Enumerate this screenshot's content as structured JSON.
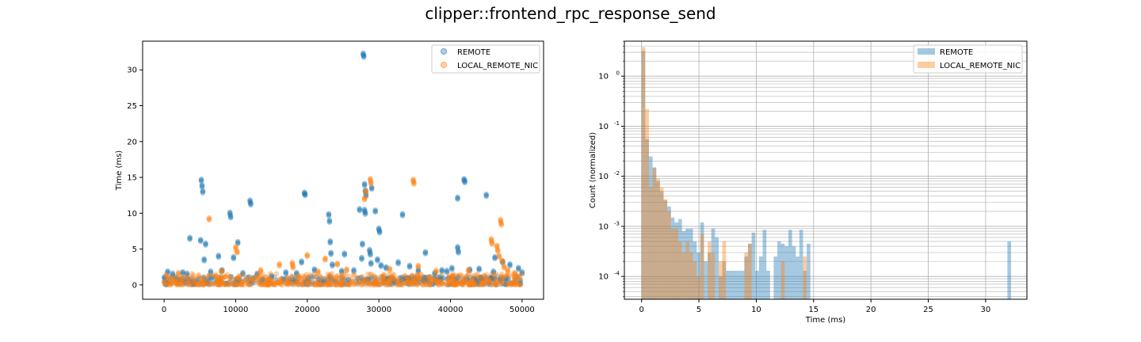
{
  "title": "clipper::frontend_rpc_response_send",
  "colors": {
    "remote": "#1f77b4",
    "local": "#ff7f0e",
    "grid": "#b0b0b0"
  },
  "chart_data": [
    {
      "type": "scatter",
      "xlabel": "",
      "ylabel": "Time (ms)",
      "xlim": [
        -3000,
        53000
      ],
      "ylim": [
        -2,
        34
      ],
      "xticks": [
        0,
        10000,
        20000,
        30000,
        40000,
        50000
      ],
      "xtick_labels": [
        "0",
        "10000",
        "20000",
        "30000",
        "40000",
        "50000"
      ],
      "yticks": [
        0,
        5,
        10,
        15,
        20,
        25,
        30
      ],
      "ytick_labels": [
        "0",
        "5",
        "10",
        "15",
        "20",
        "25",
        "30"
      ],
      "grid": false,
      "legend_position": "top-right",
      "series": [
        {
          "name": "REMOTE",
          "color": "#1f77b4",
          "baseline_range": [
            0,
            50000
          ],
          "points": [
            [
              500,
              1.8
            ],
            [
              1200,
              1.5
            ],
            [
              2600,
              1.7
            ],
            [
              3600,
              6.5
            ],
            [
              5200,
              14.6
            ],
            [
              5300,
              13.8
            ],
            [
              5400,
              13.0
            ],
            [
              5100,
              6.2
            ],
            [
              5800,
              5.7
            ],
            [
              5600,
              3.5
            ],
            [
              7600,
              4.0
            ],
            [
              8100,
              2.0
            ],
            [
              9200,
              10.0
            ],
            [
              9300,
              9.5
            ],
            [
              9700,
              3.8
            ],
            [
              10300,
              5.9
            ],
            [
              12000,
              11.7
            ],
            [
              12100,
              11.3
            ],
            [
              13000,
              1.5
            ],
            [
              15000,
              1.2
            ],
            [
              18500,
              1.6
            ],
            [
              19200,
              3.2
            ],
            [
              19600,
              12.8
            ],
            [
              19700,
              12.6
            ],
            [
              21000,
              2.1
            ],
            [
              23000,
              9.8
            ],
            [
              23100,
              8.9
            ],
            [
              23200,
              6.0
            ],
            [
              23300,
              4.4
            ],
            [
              23500,
              2.8
            ],
            [
              25200,
              4.3
            ],
            [
              27300,
              10.5
            ],
            [
              27800,
              32.2
            ],
            [
              27900,
              31.9
            ],
            [
              27700,
              5.7
            ],
            [
              28000,
              14.0
            ],
            [
              28100,
              13.1
            ],
            [
              28200,
              12.5
            ],
            [
              28000,
              10.4
            ],
            [
              28100,
              10.0
            ],
            [
              27600,
              3.7
            ],
            [
              28700,
              4.8
            ],
            [
              28800,
              4.3
            ],
            [
              28900,
              3.0
            ],
            [
              29000,
              13.5
            ],
            [
              29500,
              10.3
            ],
            [
              30000,
              7.8
            ],
            [
              30100,
              7.4
            ],
            [
              29800,
              3.5
            ],
            [
              30300,
              2.7
            ],
            [
              32700,
              3.1
            ],
            [
              33300,
              9.8
            ],
            [
              34300,
              2.6
            ],
            [
              36500,
              4.5
            ],
            [
              38800,
              2.0
            ],
            [
              40200,
              2.3
            ],
            [
              41000,
              5.2
            ],
            [
              41100,
              4.6
            ],
            [
              41000,
              12.1
            ],
            [
              41900,
              14.7
            ],
            [
              42000,
              14.4
            ],
            [
              42700,
              2.1
            ],
            [
              45000,
              12.5
            ],
            [
              46200,
              3.8
            ],
            [
              47300,
              3.2
            ],
            [
              48300,
              2.8
            ],
            [
              49500,
              2.3
            ],
            [
              50000,
              1.7
            ],
            [
              46000,
              1.8
            ],
            [
              39500,
              1.9
            ],
            [
              35500,
              2.0
            ],
            [
              31000,
              2.4
            ],
            [
              26500,
              2.0
            ],
            [
              24800,
              1.9
            ],
            [
              17000,
              1.7
            ],
            [
              11000,
              1.6
            ],
            [
              6500,
              1.8
            ],
            [
              3200,
              1.5
            ],
            [
              44000,
              2.2
            ],
            [
              37800,
              1.6
            ]
          ]
        },
        {
          "name": "LOCAL_REMOTE_NIC",
          "color": "#ff7f0e",
          "baseline_range": [
            0,
            50000
          ],
          "points": [
            [
              6300,
              9.2
            ],
            [
              10000,
              5.2
            ],
            [
              10200,
              4.6
            ],
            [
              16100,
              2.8
            ],
            [
              17900,
              3.0
            ],
            [
              18000,
              2.5
            ],
            [
              20000,
              4.1
            ],
            [
              22500,
              3.6
            ],
            [
              24200,
              2.9
            ],
            [
              28000,
              12.0
            ],
            [
              28200,
              13.0
            ],
            [
              28800,
              14.7
            ],
            [
              28900,
              14.2
            ],
            [
              34800,
              14.6
            ],
            [
              34900,
              14.2
            ],
            [
              45700,
              6.3
            ],
            [
              45800,
              5.8
            ],
            [
              46500,
              5.4
            ],
            [
              46600,
              4.8
            ],
            [
              47000,
              9.0
            ],
            [
              47100,
              8.5
            ],
            [
              46800,
              4.0
            ],
            [
              47200,
              3.3
            ],
            [
              47500,
              2.5
            ],
            [
              48000,
              2.0
            ],
            [
              49000,
              1.6
            ],
            [
              25500,
              2.1
            ],
            [
              13500,
              2.0
            ],
            [
              8000,
              1.9
            ],
            [
              2000,
              1.6
            ],
            [
              31500,
              2.2
            ],
            [
              38000,
              1.9
            ],
            [
              42500,
              2.0
            ],
            [
              35500,
              2.6
            ],
            [
              21500,
              1.8
            ]
          ]
        }
      ]
    },
    {
      "type": "bar",
      "subtype": "histogram",
      "xlabel": "Time (ms)",
      "ylabel": "Count (normalized)",
      "xlim": [
        -1.5,
        33.6
      ],
      "ylim": [
        3.5e-05,
        5
      ],
      "yscale": "log",
      "xticks": [
        0,
        5,
        10,
        15,
        20,
        25,
        30
      ],
      "xtick_labels": [
        "0",
        "5",
        "10",
        "15",
        "20",
        "25",
        "30"
      ],
      "yticks": [
        0.0001,
        0.001,
        0.01,
        0.1,
        1
      ],
      "ytick_labels": [
        "10^-4",
        "10^-3",
        "10^-2",
        "10^-1",
        "10^0"
      ],
      "grid": true,
      "legend_position": "top-right",
      "bin_width": 0.32,
      "series": [
        {
          "name": "REMOTE",
          "color": "#1f77b4",
          "opacity": 0.4,
          "bins": [
            [
              0.0,
              3.2
            ],
            [
              0.32,
              0.055
            ],
            [
              0.64,
              0.025
            ],
            [
              0.96,
              0.015
            ],
            [
              1.28,
              0.008
            ],
            [
              1.6,
              0.005
            ],
            [
              1.92,
              0.0033
            ],
            [
              2.24,
              0.0025
            ],
            [
              2.56,
              0.0015
            ],
            [
              2.88,
              0.0012
            ],
            [
              3.2,
              0.0014
            ],
            [
              3.52,
              0.0008
            ],
            [
              3.84,
              0.0009
            ],
            [
              4.16,
              0.0009
            ],
            [
              4.48,
              0.0005
            ],
            [
              4.8,
              0.0003
            ],
            [
              5.12,
              0.0012
            ],
            [
              5.44,
              0.0002
            ],
            [
              5.76,
              0.0003
            ],
            [
              6.08,
              0.0009
            ],
            [
              6.4,
              0.0006
            ],
            [
              6.72,
              0.0001
            ],
            [
              7.04,
              0.0002
            ],
            [
              7.36,
              0.00013
            ],
            [
              7.68,
              0.00013
            ],
            [
              8.0,
              0.00013
            ],
            [
              8.32,
              0.00013
            ],
            [
              8.64,
              0.00013
            ],
            [
              8.96,
              0.00025
            ],
            [
              9.28,
              0.00045
            ],
            [
              9.6,
              0.00075
            ],
            [
              9.92,
              0.00013
            ],
            [
              10.24,
              0.00025
            ],
            [
              10.56,
              0.00085
            ],
            [
              10.88,
              0.00013
            ],
            [
              11.52,
              0.00025
            ],
            [
              11.84,
              0.0005
            ],
            [
              12.16,
              0.00045
            ],
            [
              12.48,
              0.0004
            ],
            [
              12.8,
              0.00085
            ],
            [
              13.12,
              0.0004
            ],
            [
              13.44,
              0.00025
            ],
            [
              13.76,
              0.00085
            ],
            [
              14.08,
              0.00013
            ],
            [
              14.4,
              0.00045
            ],
            [
              31.9,
              0.0005
            ]
          ]
        },
        {
          "name": "LOCAL_REMOTE_NIC",
          "color": "#ff7f0e",
          "opacity": 0.4,
          "bins": [
            [
              0.0,
              3.8
            ],
            [
              0.32,
              0.22
            ],
            [
              0.64,
              0.006
            ],
            [
              0.96,
              0.015
            ],
            [
              1.28,
              0.009
            ],
            [
              1.6,
              0.006
            ],
            [
              1.92,
              0.0035
            ],
            [
              2.24,
              0.002
            ],
            [
              2.56,
              0.0009
            ],
            [
              2.88,
              0.0009
            ],
            [
              3.2,
              0.0005
            ],
            [
              3.52,
              0.0003
            ],
            [
              3.84,
              0.0005
            ],
            [
              4.16,
              0.0003
            ],
            [
              4.48,
              0.0002
            ],
            [
              4.8,
              0.0001
            ],
            [
              5.12,
              0.0007
            ],
            [
              5.76,
              0.0005
            ],
            [
              6.08,
              0.0003
            ],
            [
              6.72,
              0.0002
            ],
            [
              7.04,
              0.0005
            ],
            [
              8.96,
              0.0003
            ],
            [
              9.28,
              0.00045
            ],
            [
              12.16,
              0.0002
            ],
            [
              14.08,
              0.00025
            ]
          ]
        }
      ]
    }
  ]
}
